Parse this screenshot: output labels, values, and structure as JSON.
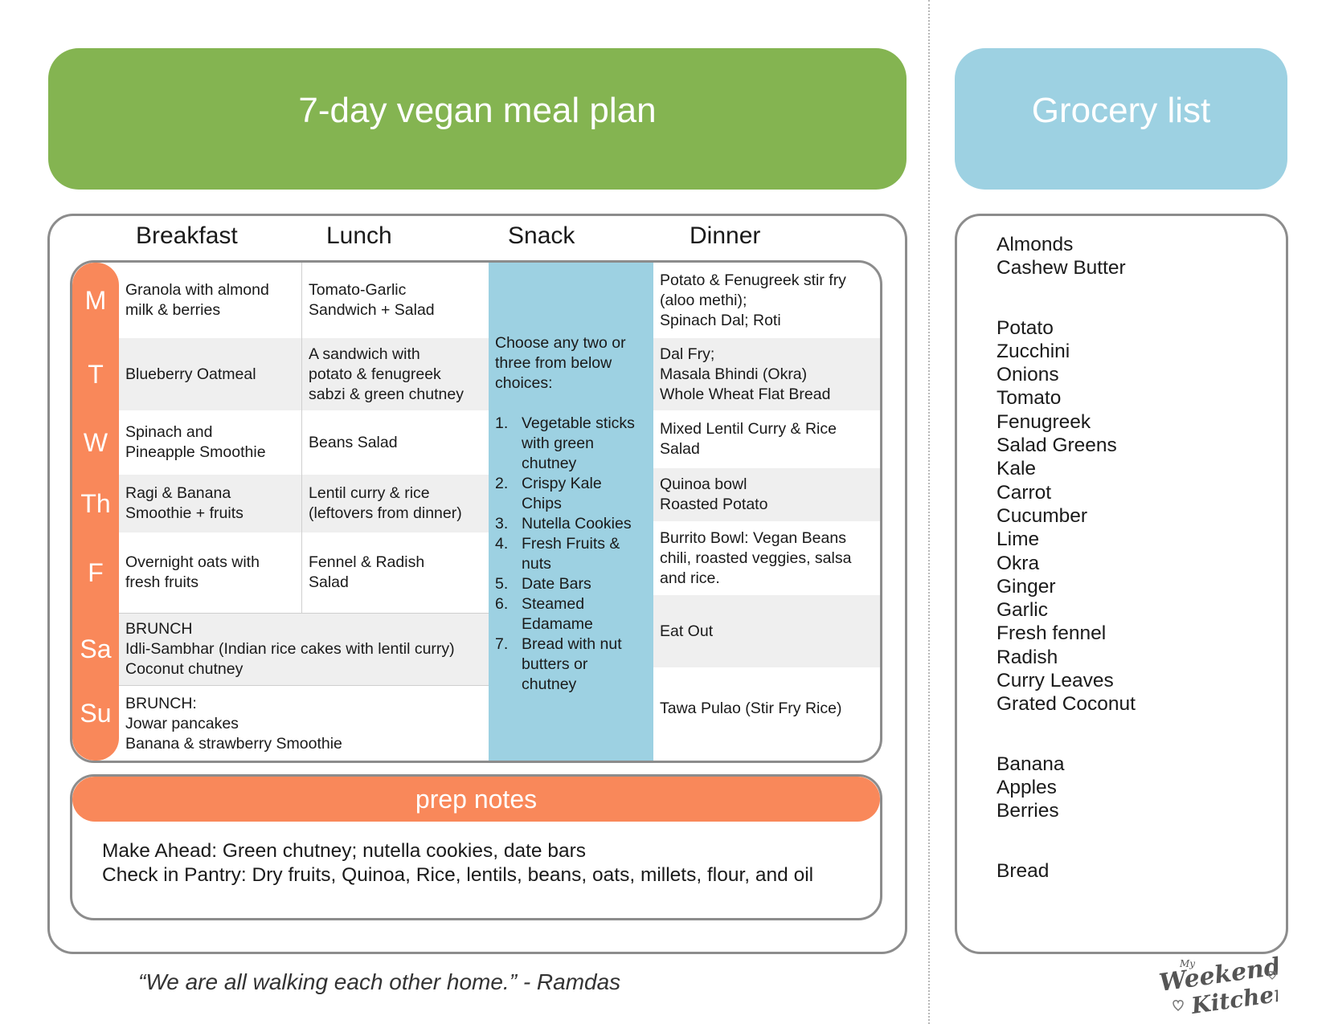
{
  "header": {
    "plan_title": "7-day vegan meal plan",
    "grocery_title": "Grocery list"
  },
  "columns": [
    "Breakfast",
    "Lunch",
    "Snack",
    "Dinner"
  ],
  "days": [
    "M",
    "T",
    "W",
    "Th",
    "F",
    "Sa",
    "Su"
  ],
  "meals": {
    "breakfast": [
      "Granola with almond\nmilk & berries",
      "Blueberry Oatmeal",
      "Spinach and\nPineapple Smoothie",
      "Ragi & Banana\nSmoothie + fruits",
      "Overnight oats with\nfresh fruits"
    ],
    "lunch": [
      "Tomato-Garlic\nSandwich + Salad",
      "A sandwich with\npotato & fenugreek\nsabzi & green chutney",
      "Beans Salad",
      "Lentil curry & rice\n(leftovers from dinner)",
      "Fennel & Radish\nSalad"
    ],
    "brunch": [
      "BRUNCH\nIdli-Sambhar (Indian rice cakes with lentil curry)\nCoconut chutney",
      "BRUNCH:\nJowar pancakes\nBanana & strawberry Smoothie"
    ],
    "dinner": [
      "Potato & Fenugreek stir fry\n(aloo methi);\nSpinach Dal; Roti",
      "Dal Fry;\nMasala Bhindi (Okra)\nWhole Wheat Flat Bread",
      "Mixed Lentil Curry & Rice\nSalad",
      "Quinoa bowl\nRoasted Potato",
      "Burrito Bowl: Vegan Beans\nchili, roasted veggies, salsa\nand rice.",
      "Eat Out",
      "Tawa Pulao (Stir Fry Rice)"
    ]
  },
  "snack": {
    "intro": "Choose any two or\nthree from below\nchoices:",
    "items": [
      {
        "num": "1.",
        "text": "Vegetable sticks\nwith green\nchutney"
      },
      {
        "num": "2.",
        "text": "Crispy Kale\nChips"
      },
      {
        "num": "3.",
        "text": "Nutella Cookies"
      },
      {
        "num": "4.",
        "text": "Fresh Fruits &\nnuts"
      },
      {
        "num": "5.",
        "text": "Date Bars"
      },
      {
        "num": "6.",
        "text": "Steamed\nEdamame"
      },
      {
        "num": "7.",
        "text": "Bread with nut\nbutters or\nchutney"
      }
    ]
  },
  "prep": {
    "title": "prep notes",
    "make_ahead": "Make Ahead: Green chutney; nutella cookies, date bars",
    "pantry": "Check in Pantry: Dry fruits, Quinoa, Rice, lentils, beans, oats, millets, flour, and oil"
  },
  "grocery": {
    "nuts": [
      "Almonds",
      "Cashew Butter"
    ],
    "produce": [
      "Potato",
      "Zucchini",
      "Onions",
      "Tomato",
      "Fenugreek",
      "Salad Greens",
      "Kale",
      "Carrot",
      "Cucumber",
      "Lime",
      "Okra",
      "Ginger",
      "Garlic",
      "Fresh fennel",
      "Radish",
      "Curry Leaves",
      "Grated Coconut"
    ],
    "fruits": [
      "Banana",
      "Apples",
      "Berries"
    ],
    "bakery": [
      "Bread"
    ]
  },
  "quote": "“We are all walking each other home.” - Ramdas",
  "logo": {
    "line1": "My",
    "line2": "Weekend",
    "line3": "Kitchen"
  },
  "colors": {
    "green": "#84b451",
    "blue": "#9dd1e2",
    "orange": "#f9885a",
    "gray_row": "#efefef"
  }
}
